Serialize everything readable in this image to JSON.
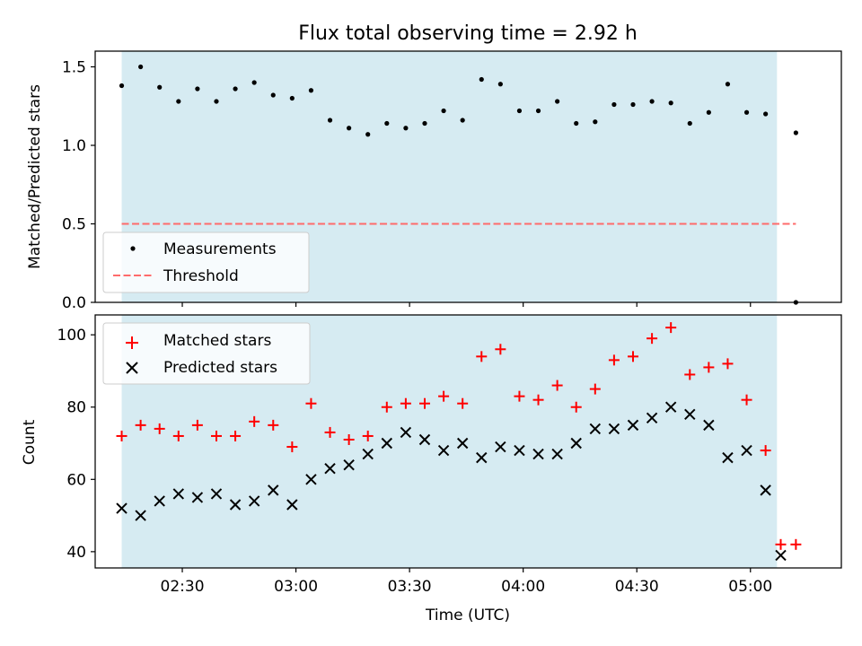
{
  "figure": {
    "title": "Flux total observing time = 2.92 h",
    "xlabel": "Time (UTC)"
  },
  "colors": {
    "shade": "#add8e6",
    "measurement": "#000000",
    "threshold": "#ff6b6b",
    "matched": "#ff0000",
    "predicted": "#000000"
  },
  "chart_data": [
    {
      "type": "scatter",
      "panel": "top",
      "ylabel": "Matched/Predicted stars",
      "x_format": "HH:MM",
      "x_range": [
        "02:07",
        "05:24"
      ],
      "ylim": [
        0,
        1.6
      ],
      "yticks": [
        0.0,
        0.5,
        1.0,
        1.5
      ],
      "ytick_labels": [
        "0.0",
        "0.5",
        "1.0",
        "1.5"
      ],
      "grid": false,
      "legend": "lower-left",
      "shaded_interval": [
        "02:14",
        "05:07"
      ],
      "threshold": {
        "name": "Threshold",
        "value": 0.5,
        "x_range": [
          "02:14",
          "05:12"
        ]
      },
      "series": [
        {
          "name": "Measurements",
          "x": [
            "02:14",
            "02:19",
            "02:24",
            "02:29",
            "02:34",
            "02:39",
            "02:44",
            "02:49",
            "02:54",
            "02:59",
            "03:04",
            "03:09",
            "03:14",
            "03:19",
            "03:24",
            "03:29",
            "03:34",
            "03:39",
            "03:44",
            "03:49",
            "03:54",
            "03:59",
            "04:04",
            "04:09",
            "04:14",
            "04:19",
            "04:24",
            "04:29",
            "04:34",
            "04:39",
            "04:44",
            "04:49",
            "04:54",
            "04:59",
            "05:04",
            "05:12"
          ],
          "y": [
            1.38,
            1.5,
            1.37,
            1.28,
            1.36,
            1.28,
            1.36,
            1.4,
            1.32,
            1.3,
            1.35,
            1.16,
            1.11,
            1.07,
            1.14,
            1.11,
            1.14,
            1.22,
            1.16,
            1.42,
            1.39,
            1.22,
            1.22,
            1.28,
            1.14,
            1.15,
            1.26,
            1.26,
            1.28,
            1.27,
            1.14,
            1.21,
            1.39,
            1.21,
            1.2,
            1.08
          ]
        }
      ]
    },
    {
      "type": "scatter",
      "panel": "bottom",
      "ylabel": "Count",
      "x_format": "HH:MM",
      "x_range": [
        "02:07",
        "05:24"
      ],
      "ylim": [
        35.5,
        105.5
      ],
      "yticks": [
        40,
        60,
        80,
        100
      ],
      "ytick_labels": [
        "40",
        "60",
        "80",
        "100"
      ],
      "xticks": [
        "02:30",
        "03:00",
        "03:30",
        "04:00",
        "04:30",
        "05:00"
      ],
      "grid": false,
      "legend": "upper-left",
      "shaded_interval": [
        "02:14",
        "05:07"
      ],
      "series": [
        {
          "name": "Matched stars",
          "marker": "plus",
          "x": [
            "02:14",
            "02:19",
            "02:24",
            "02:29",
            "02:34",
            "02:39",
            "02:44",
            "02:49",
            "02:54",
            "02:59",
            "03:04",
            "03:09",
            "03:14",
            "03:19",
            "03:24",
            "03:29",
            "03:34",
            "03:39",
            "03:44",
            "03:49",
            "03:54",
            "03:59",
            "04:04",
            "04:09",
            "04:14",
            "04:19",
            "04:24",
            "04:29",
            "04:34",
            "04:39",
            "04:44",
            "04:49",
            "04:54",
            "04:59",
            "05:04",
            "05:08",
            "05:12"
          ],
          "y": [
            72,
            75,
            74,
            72,
            75,
            72,
            72,
            76,
            75,
            69,
            81,
            73,
            71,
            72,
            80,
            81,
            81,
            83,
            81,
            94,
            96,
            83,
            82,
            86,
            80,
            85,
            93,
            94,
            99,
            102,
            89,
            91,
            92,
            82,
            68,
            42,
            42
          ]
        },
        {
          "name": "Predicted stars",
          "marker": "x",
          "x": [
            "02:14",
            "02:19",
            "02:24",
            "02:29",
            "02:34",
            "02:39",
            "02:44",
            "02:49",
            "02:54",
            "02:59",
            "03:04",
            "03:09",
            "03:14",
            "03:19",
            "03:24",
            "03:29",
            "03:34",
            "03:39",
            "03:44",
            "03:49",
            "03:54",
            "03:59",
            "04:04",
            "04:09",
            "04:14",
            "04:19",
            "04:24",
            "04:29",
            "04:34",
            "04:39",
            "04:44",
            "04:49",
            "04:54",
            "04:59",
            "05:04",
            "05:08"
          ],
          "y": [
            52,
            50,
            54,
            56,
            55,
            56,
            53,
            54,
            57,
            53,
            60,
            63,
            64,
            67,
            70,
            73,
            71,
            68,
            70,
            66,
            69,
            68,
            67,
            67,
            70,
            74,
            74,
            75,
            77,
            80,
            78,
            75,
            66,
            68,
            57,
            39
          ]
        }
      ]
    }
  ]
}
